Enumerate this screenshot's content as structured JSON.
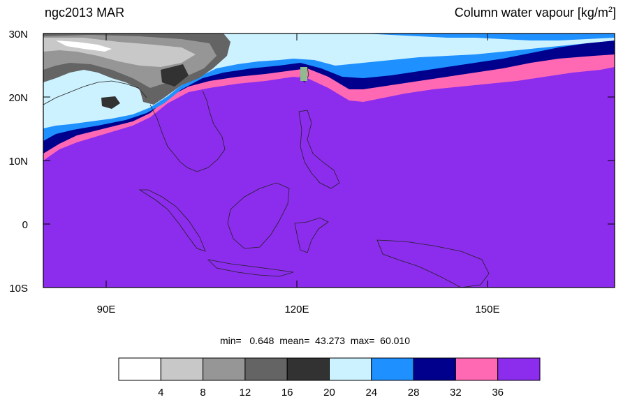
{
  "header": {
    "left_title": "ngc2013 MAR",
    "right_title": "Column water vapour [kg/m",
    "right_title_exp": "2",
    "right_title_close": "]"
  },
  "stats": {
    "text": "min=   0.648  mean=  43.273  max=  60.010"
  },
  "axes": {
    "lat_labels": [
      "30N",
      "20N",
      "10N",
      "0",
      "10S"
    ],
    "lon_labels": [
      "90E",
      "120E",
      "150E"
    ]
  },
  "colorbar": {
    "colors": [
      "#ffffff",
      "#c8c8c8",
      "#969696",
      "#646464",
      "#323232",
      "#cdf2ff",
      "#1e90ff",
      "#00008c",
      "#ff69b4",
      "#8c2ced"
    ],
    "tick_labels": [
      "4",
      "8",
      "12",
      "16",
      "20",
      "24",
      "28",
      "32",
      "36"
    ]
  },
  "map_colors": {
    "ocean_high": "#8c2ced",
    "band_pink": "#ff69b4",
    "band_navy": "#00008c",
    "band_blue": "#1e90ff",
    "band_light": "#cdf2ff"
  }
}
